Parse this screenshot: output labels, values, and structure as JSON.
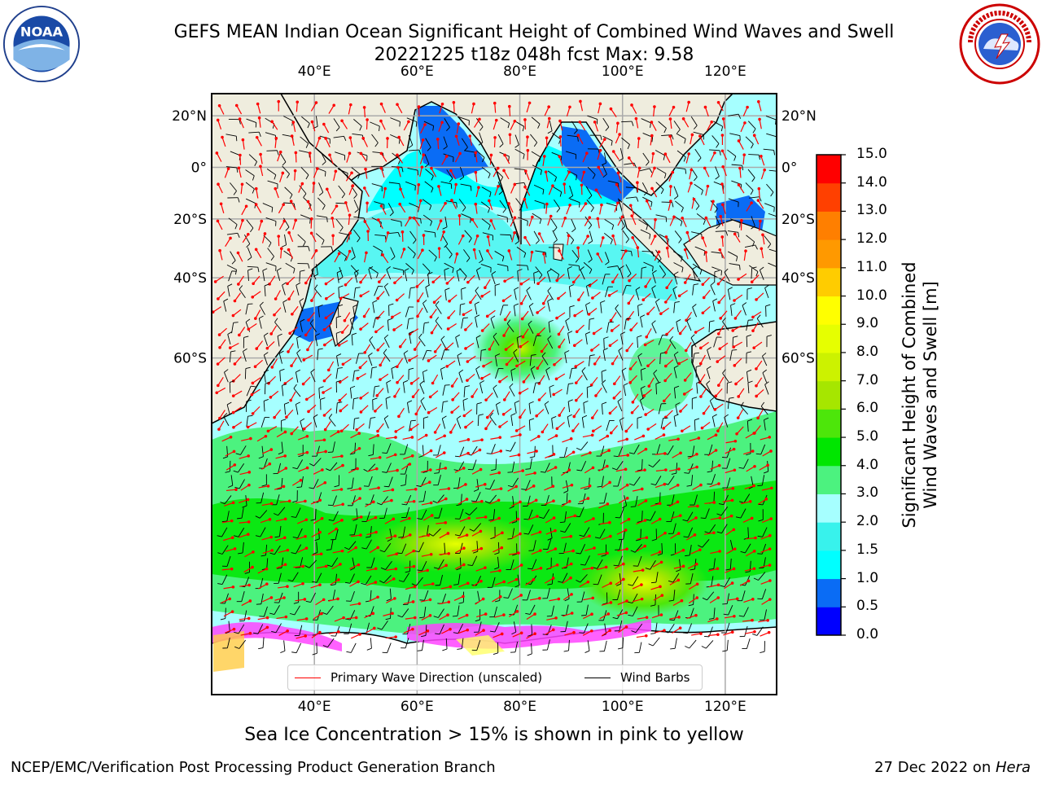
{
  "title_line1": "GEFS MEAN Indian Ocean Significant Height of Combined Wind Waves and Swell",
  "title_line2": "20221225 t18z 048h fcst   Max: 9.58",
  "logos": {
    "left": "noaa-logo",
    "left_text": "NOAA",
    "right": "nws-logo"
  },
  "map": {
    "lon_ticks": [
      "40°E",
      "60°E",
      "80°E",
      "100°E",
      "120°E"
    ],
    "lat_ticks": [
      "20°N",
      "0°",
      "20°S",
      "40°S",
      "60°S"
    ],
    "lon_values": [
      40,
      60,
      80,
      100,
      120
    ],
    "lat_values": [
      20,
      0,
      -20,
      -40,
      -60
    ],
    "lon_range": [
      20,
      130
    ],
    "lat_range": [
      28,
      -87
    ],
    "grid": true,
    "colors": {
      "land": "#efedde",
      "ice": "#ff44ff",
      "wave_arrow": "#ff0000",
      "barb": "#000000"
    }
  },
  "colorbar": {
    "label": "Significant Height of Combined Wind Waves and Swell [m]",
    "label_line1": "Significant Height of Combined",
    "label_line2": "Wind Waves and Swell [m]",
    "levels": [
      "0.0",
      "0.5",
      "1.0",
      "1.5",
      "2.0",
      "3.0",
      "4.0",
      "5.0",
      "6.0",
      "7.0",
      "8.0",
      "9.0",
      "10.0",
      "11.0",
      "12.0",
      "13.0",
      "14.0",
      "15.0"
    ],
    "colors": [
      "#0000ff",
      "#0a6cf5",
      "#00ffff",
      "#38f2ec",
      "#a6ffff",
      "#4cf27f",
      "#00e600",
      "#4de60a",
      "#a6e600",
      "#ccf200",
      "#e6ff00",
      "#ffff00",
      "#ffcc00",
      "#ff9900",
      "#ff7f00",
      "#ff4000",
      "#ff0000"
    ]
  },
  "legend": {
    "wave": "Primary Wave Direction (unscaled)",
    "barb": "Wind Barbs"
  },
  "caption": "Sea Ice Concentration > 15% is shown in pink to yellow",
  "footer_left": "NCEP/EMC/Verification Post Processing Product Generation Branch",
  "footer_right_date": "27 Dec 2022 on ",
  "footer_right_host": "Hera"
}
